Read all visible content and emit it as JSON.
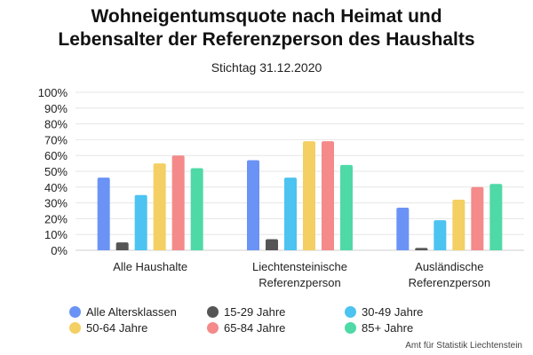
{
  "chart_data": {
    "type": "bar",
    "title": "Wohneigentumsquote nach Heimat und Lebensalter der Referenzperson des Haushalts",
    "title_lines": [
      "Wohneigentumsquote nach Heimat und",
      "Lebensalter der Referenzperson des Haushalts"
    ],
    "subtitle": "Stichtag 31.12.2020",
    "categories": [
      [
        "Alle Haushalte"
      ],
      [
        "Liechtensteinische",
        "Referenzperson"
      ],
      [
        "Ausländische",
        "Referenzperson"
      ]
    ],
    "series": [
      {
        "name": "Alle Altersklassen",
        "color": "#6b93f5",
        "values": [
          46,
          57,
          27
        ]
      },
      {
        "name": "15-29 Jahre",
        "color": "#555555",
        "values": [
          5,
          7,
          1.5
        ]
      },
      {
        "name": "30-49 Jahre",
        "color": "#4cc3f0",
        "values": [
          35,
          46,
          19
        ]
      },
      {
        "name": "50-64 Jahre",
        "color": "#f4cf63",
        "values": [
          55,
          69,
          32
        ]
      },
      {
        "name": "65-84 Jahre",
        "color": "#f48a8a",
        "values": [
          60,
          69,
          40
        ]
      },
      {
        "name": "85+ Jahre",
        "color": "#4fd9a6",
        "values": [
          52,
          54,
          42
        ]
      }
    ],
    "ylim": [
      0,
      100
    ],
    "yticks": [
      "0%",
      "10%",
      "20%",
      "30%",
      "40%",
      "50%",
      "60%",
      "70%",
      "80%",
      "90%",
      "100%"
    ],
    "grid": true,
    "legend_position": "bottom",
    "source": "Amt für Statistik Liechtenstein"
  }
}
